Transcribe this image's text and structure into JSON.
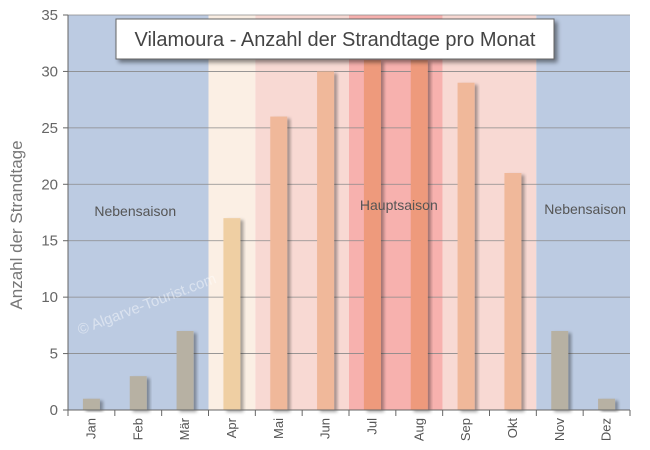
{
  "chart_data": {
    "type": "bar",
    "title": "Vilamoura - Anzahl der Strandtage pro Monat",
    "ylabel": "Anzahl der Strandtage",
    "xlabel": "",
    "ylim": [
      0,
      35
    ],
    "yticks": [
      0,
      5,
      10,
      15,
      20,
      25,
      30,
      35
    ],
    "grid": true,
    "categories": [
      "Jan",
      "Feb",
      "Mär",
      "Apr",
      "Mai",
      "Jun",
      "Jul",
      "Aug",
      "Sep",
      "Okt",
      "Nov",
      "Dez"
    ],
    "values": [
      1,
      3,
      7,
      17,
      26,
      30,
      31,
      31,
      29,
      21,
      7,
      1
    ],
    "bar_colors": [
      "#b7b1a3",
      "#b7b1a3",
      "#b7b1a3",
      "#efcfa3",
      "#f0b89a",
      "#f0b89a",
      "#ee9a7c",
      "#ee9a7c",
      "#f0b89a",
      "#f0b89a",
      "#b7b1a3",
      "#b7b1a3"
    ],
    "season_bands": [
      {
        "from": 0,
        "to": 3,
        "color": "#bccbe2"
      },
      {
        "from": 3,
        "to": 4,
        "color": "#fbefe4"
      },
      {
        "from": 4,
        "to": 6,
        "color": "#f8d9d3"
      },
      {
        "from": 6,
        "to": 8,
        "color": "#f7b1ae"
      },
      {
        "from": 8,
        "to": 10,
        "color": "#f8d9d3"
      },
      {
        "from": 10,
        "to": 12,
        "color": "#bccbe2"
      }
    ],
    "annotations": [
      {
        "text": "Nebensaison",
        "position": "left"
      },
      {
        "text": "Hauptsaison",
        "position": "center"
      },
      {
        "text": "Nebensaison",
        "position": "right"
      }
    ],
    "watermark": "© Algarve-Tourist.com"
  }
}
